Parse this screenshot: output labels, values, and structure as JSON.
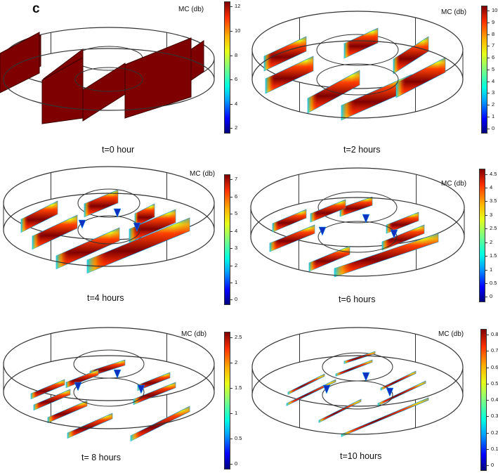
{
  "panel_letter": "c",
  "panels": [
    {
      "caption": "t=0 hour",
      "legend_title": "MC (db)",
      "ticks": [
        "12",
        "10",
        "8",
        "6",
        "4",
        "2"
      ]
    },
    {
      "caption": "t=2 hours",
      "legend_title": "MC (db)",
      "ticks": [
        "10",
        "9",
        "8",
        "7",
        "6",
        "5",
        "4",
        "3",
        "2",
        "1",
        "0"
      ]
    },
    {
      "caption": "t=4 hours",
      "legend_title": "MC (db)",
      "ticks": [
        "7",
        "6",
        "5",
        "4",
        "3",
        "2",
        "1",
        "0"
      ]
    },
    {
      "caption": "t=6 hours",
      "legend_title": "MC (db)",
      "ticks": [
        "4.5",
        "4",
        "3.5",
        "3",
        "2.5",
        "2",
        "1.5",
        "1",
        "0.5",
        "0"
      ]
    },
    {
      "caption": "t= 8 hours",
      "legend_title": "MC (db)",
      "ticks": [
        "2.5",
        "2",
        "1.5",
        "1",
        "0.5",
        "0"
      ]
    },
    {
      "caption": "t=10 hours",
      "legend_title": "MC (db)",
      "ticks": [
        "0.8",
        "0.7",
        "0.6",
        "0.5",
        "0.4",
        "0.3",
        "0.2",
        "0.1",
        "0"
      ]
    }
  ],
  "colors": {
    "colormap_high": "#7f0000",
    "colormap_mid": "#e6ff1a",
    "colormap_low": "#00007f",
    "outline": "#333333"
  }
}
